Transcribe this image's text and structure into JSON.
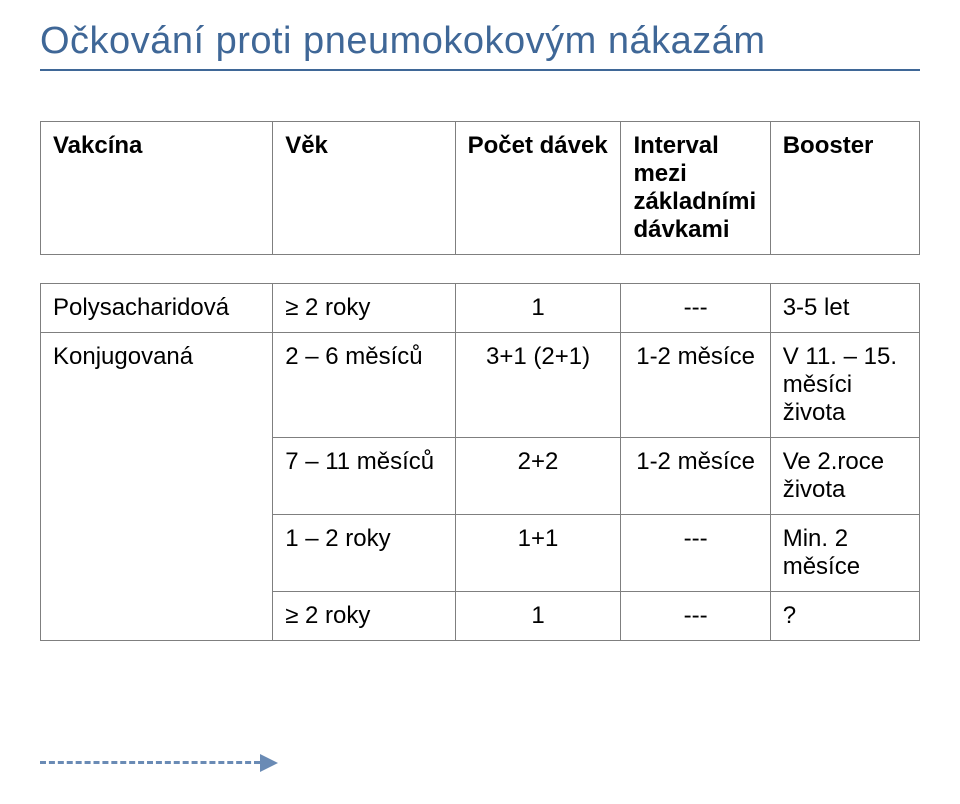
{
  "title": "Očkování proti pneumokokovým nákazám",
  "table": {
    "headers": {
      "vaccine": "Vakcína",
      "age": "Věk",
      "doses": "Počet dávek",
      "interval": "Interval mezi základními dávkami",
      "booster": "Booster"
    },
    "rows": [
      {
        "vaccine": "Polysacharidová",
        "age": "≥ 2 roky",
        "doses": "1",
        "interval": "---",
        "booster": "3-5 let"
      },
      {
        "vaccine": "Konjugovaná",
        "age": "2 – 6 měsíců",
        "doses": "3+1  (2+1)",
        "interval": "1-2 měsíce",
        "booster": "V 11. – 15. měsíci života"
      },
      {
        "vaccine": "",
        "age": "7 – 11 měsíců",
        "doses": "2+2",
        "interval": "1-2 měsíce",
        "booster": "Ve 2.roce života"
      },
      {
        "vaccine": "",
        "age": "1 – 2 roky",
        "doses": "1+1",
        "interval": "---",
        "booster": "Min. 2 měsíce"
      },
      {
        "vaccine": "",
        "age": "≥ 2 roky",
        "doses": "1",
        "interval": "---",
        "booster": "?"
      }
    ]
  },
  "colors": {
    "title": "#3f6797",
    "border": "#7f7f7f",
    "background": "#ffffff",
    "arrow": "#6a8bb5"
  }
}
